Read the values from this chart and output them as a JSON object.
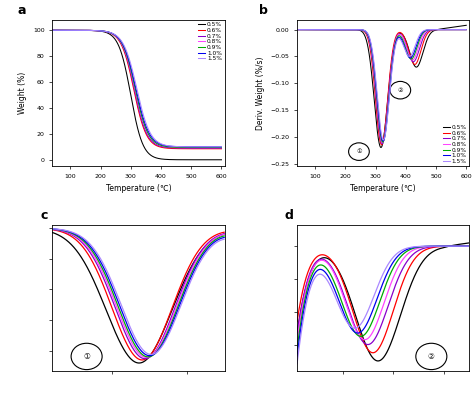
{
  "labels": [
    "0.5%",
    "0.6%",
    "0.7%",
    "0.8%",
    "0.9%",
    "1.0%",
    "1.5%"
  ],
  "colors": [
    "#000000",
    "#ff0000",
    "#8800cc",
    "#ff44ff",
    "#00aa00",
    "#0000ee",
    "#aa88ff"
  ],
  "background_color": "#ffffff"
}
